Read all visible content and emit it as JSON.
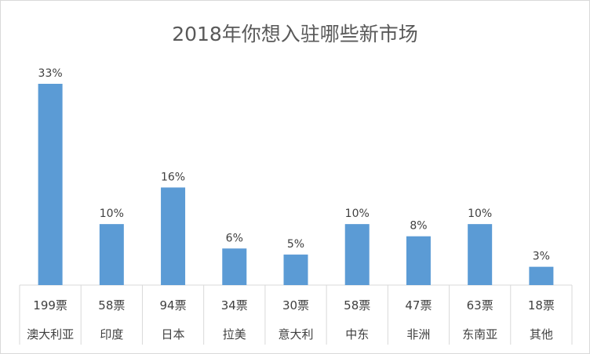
{
  "chart_data": {
    "type": "bar",
    "title": "2018年你想入驻哪些新市场",
    "xlabel": "",
    "ylabel": "",
    "categories": [
      "澳大利亚",
      "印度",
      "日本",
      "拉美",
      "意大利",
      "中东",
      "非洲",
      "东南亚",
      "其他"
    ],
    "vote_labels": [
      "199票",
      "58票",
      "94票",
      "34票",
      "30票",
      "58票",
      "47票",
      "63票",
      "18票"
    ],
    "votes": [
      199,
      58,
      94,
      34,
      30,
      58,
      47,
      63,
      18
    ],
    "percent_labels": [
      "33%",
      "10%",
      "16%",
      "6%",
      "5%",
      "10%",
      "8%",
      "10%",
      "3%"
    ],
    "values": [
      33,
      10,
      16,
      6,
      5,
      10,
      8,
      10,
      3
    ],
    "ylim": [
      0,
      33
    ],
    "grid": false,
    "legend": "none",
    "bar_color": "#5b9bd5"
  }
}
